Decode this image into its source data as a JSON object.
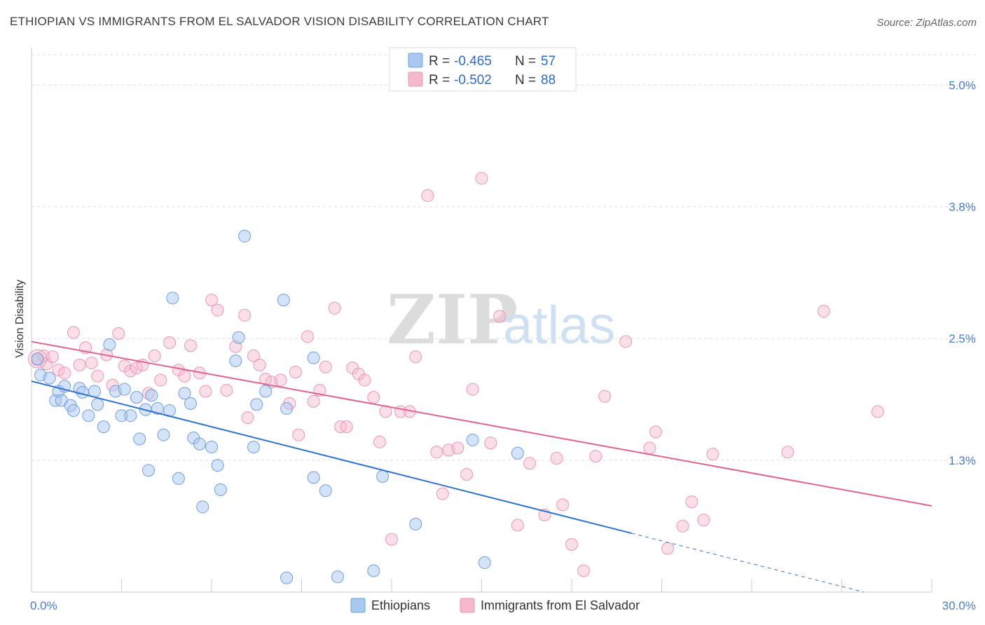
{
  "title": "ETHIOPIAN VS IMMIGRANTS FROM EL SALVADOR VISION DISABILITY CORRELATION CHART",
  "source": "Source: ZipAtlas.com",
  "watermark": {
    "zip": "ZIP",
    "atlas": "atlas"
  },
  "colors": {
    "blue_fill": "#a9c8ef",
    "blue_stroke": "#6f9fdc",
    "blue_line": "#2e72d2",
    "pink_fill": "#f6b9cc",
    "pink_stroke": "#e996b3",
    "pink_line": "#e0648e",
    "tick_text": "#4a7cc9",
    "grid": "#dddddd"
  },
  "legend": {
    "rows": [
      {
        "r_label": "R = ",
        "r_value": "-0.465",
        "n_label": "N = ",
        "n_value": "57"
      },
      {
        "r_label": "R = ",
        "r_value": "-0.502",
        "n_label": "N = ",
        "n_value": "88"
      }
    ]
  },
  "bottom_legend": [
    "Ethiopians",
    "Immigrants from El Salvador"
  ],
  "chart_data": {
    "type": "scatter",
    "title": "ETHIOPIAN VS IMMIGRANTS FROM EL SALVADOR VISION DISABILITY CORRELATION CHART",
    "xlabel": "",
    "ylabel": "Vision Disability",
    "xlim": [
      0,
      30
    ],
    "ylim": [
      0,
      5.3
    ],
    "x_tick_labels": [
      "0.0%",
      "30.0%"
    ],
    "y_ticks": [
      1.3,
      2.5,
      3.8,
      5.0
    ],
    "y_tick_labels": [
      "1.3%",
      "2.5%",
      "3.8%",
      "5.0%"
    ],
    "grid": true,
    "legend_position": "top-center",
    "series": [
      {
        "name": "Ethiopians",
        "r": -0.465,
        "n": 57,
        "trend": {
          "x0": 0,
          "y0": 2.08,
          "x1": 20.0,
          "y1": 0.58,
          "dash_to_x": 30
        },
        "points": [
          [
            0.2,
            2.3
          ],
          [
            0.3,
            2.14
          ],
          [
            0.6,
            2.11
          ],
          [
            0.8,
            1.89
          ],
          [
            0.9,
            1.98
          ],
          [
            1.0,
            1.89
          ],
          [
            1.1,
            2.03
          ],
          [
            1.3,
            1.84
          ],
          [
            1.4,
            1.79
          ],
          [
            1.6,
            2.01
          ],
          [
            1.7,
            1.97
          ],
          [
            1.9,
            1.74
          ],
          [
            2.1,
            1.98
          ],
          [
            2.2,
            1.85
          ],
          [
            2.4,
            1.63
          ],
          [
            2.6,
            2.44
          ],
          [
            2.8,
            1.98
          ],
          [
            3.0,
            1.74
          ],
          [
            3.1,
            2.0
          ],
          [
            3.3,
            1.74
          ],
          [
            3.5,
            1.92
          ],
          [
            3.6,
            1.51
          ],
          [
            3.8,
            1.8
          ],
          [
            3.9,
            1.2
          ],
          [
            4.0,
            1.94
          ],
          [
            4.2,
            1.81
          ],
          [
            4.4,
            1.55
          ],
          [
            4.6,
            1.79
          ],
          [
            4.7,
            2.9
          ],
          [
            4.9,
            1.12
          ],
          [
            5.1,
            1.96
          ],
          [
            5.3,
            1.86
          ],
          [
            5.4,
            1.52
          ],
          [
            5.6,
            1.46
          ],
          [
            5.7,
            0.84
          ],
          [
            6.0,
            1.43
          ],
          [
            6.2,
            1.25
          ],
          [
            6.3,
            1.01
          ],
          [
            6.8,
            2.28
          ],
          [
            6.9,
            2.51
          ],
          [
            7.1,
            3.51
          ],
          [
            7.4,
            1.43
          ],
          [
            7.5,
            1.85
          ],
          [
            7.8,
            1.98
          ],
          [
            8.4,
            2.88
          ],
          [
            8.5,
            1.81
          ],
          [
            8.5,
            0.14
          ],
          [
            9.4,
            2.31
          ],
          [
            9.4,
            1.13
          ],
          [
            9.8,
            1.0
          ],
          [
            10.2,
            0.15
          ],
          [
            11.4,
            0.21
          ],
          [
            11.7,
            1.14
          ],
          [
            12.8,
            0.67
          ],
          [
            14.7,
            1.5
          ],
          [
            15.1,
            0.29
          ],
          [
            16.2,
            1.37
          ]
        ]
      },
      {
        "name": "Immigrants from El Salvador",
        "r": -0.502,
        "n": 88,
        "trend": {
          "x0": 0,
          "y0": 2.47,
          "x1": 30,
          "y1": 0.85
        },
        "points": [
          [
            0.2,
            2.29
          ],
          [
            0.4,
            2.33
          ],
          [
            0.5,
            2.25
          ],
          [
            0.7,
            2.32
          ],
          [
            0.9,
            2.19
          ],
          [
            1.1,
            2.16
          ],
          [
            1.4,
            2.56
          ],
          [
            1.6,
            2.24
          ],
          [
            1.8,
            2.41
          ],
          [
            2.0,
            2.26
          ],
          [
            2.2,
            2.13
          ],
          [
            2.5,
            2.34
          ],
          [
            2.7,
            2.04
          ],
          [
            2.9,
            2.55
          ],
          [
            3.1,
            2.23
          ],
          [
            3.3,
            2.18
          ],
          [
            3.5,
            2.21
          ],
          [
            3.7,
            2.24
          ],
          [
            3.9,
            1.96
          ],
          [
            4.1,
            2.33
          ],
          [
            4.3,
            2.09
          ],
          [
            4.6,
            2.46
          ],
          [
            4.9,
            2.19
          ],
          [
            5.1,
            2.13
          ],
          [
            5.3,
            2.43
          ],
          [
            5.6,
            2.16
          ],
          [
            5.8,
            1.98
          ],
          [
            6.0,
            2.88
          ],
          [
            6.2,
            2.78
          ],
          [
            6.5,
            1.99
          ],
          [
            6.8,
            2.42
          ],
          [
            7.1,
            2.73
          ],
          [
            7.2,
            1.72
          ],
          [
            7.4,
            2.33
          ],
          [
            7.6,
            2.24
          ],
          [
            7.8,
            2.1
          ],
          [
            8.0,
            2.07
          ],
          [
            8.3,
            2.09
          ],
          [
            8.6,
            1.86
          ],
          [
            8.8,
            2.17
          ],
          [
            8.9,
            1.55
          ],
          [
            9.2,
            2.52
          ],
          [
            9.4,
            1.88
          ],
          [
            9.6,
            1.99
          ],
          [
            9.8,
            2.22
          ],
          [
            10.1,
            2.8
          ],
          [
            10.3,
            1.63
          ],
          [
            10.5,
            1.63
          ],
          [
            10.7,
            2.21
          ],
          [
            10.9,
            2.15
          ],
          [
            11.1,
            2.09
          ],
          [
            11.4,
            1.92
          ],
          [
            11.6,
            1.48
          ],
          [
            11.8,
            1.78
          ],
          [
            12.0,
            0.52
          ],
          [
            12.3,
            1.78
          ],
          [
            12.6,
            1.78
          ],
          [
            12.8,
            2.32
          ],
          [
            13.2,
            3.91
          ],
          [
            13.5,
            1.38
          ],
          [
            13.7,
            0.97
          ],
          [
            13.9,
            1.4
          ],
          [
            14.2,
            1.42
          ],
          [
            14.5,
            1.16
          ],
          [
            14.7,
            2.0
          ],
          [
            15.0,
            4.08
          ],
          [
            15.3,
            1.47
          ],
          [
            15.6,
            2.72
          ],
          [
            16.2,
            0.66
          ],
          [
            16.6,
            1.27
          ],
          [
            17.1,
            0.76
          ],
          [
            17.5,
            1.32
          ],
          [
            17.7,
            0.86
          ],
          [
            18.0,
            0.47
          ],
          [
            18.4,
            0.21
          ],
          [
            18.8,
            1.34
          ],
          [
            19.1,
            1.93
          ],
          [
            19.8,
            2.47
          ],
          [
            20.6,
            1.42
          ],
          [
            20.8,
            1.58
          ],
          [
            21.2,
            0.43
          ],
          [
            21.7,
            0.65
          ],
          [
            22.0,
            0.89
          ],
          [
            22.4,
            0.71
          ],
          [
            22.7,
            1.36
          ],
          [
            25.2,
            1.38
          ],
          [
            26.4,
            2.77
          ],
          [
            28.2,
            1.78
          ]
        ]
      }
    ]
  }
}
